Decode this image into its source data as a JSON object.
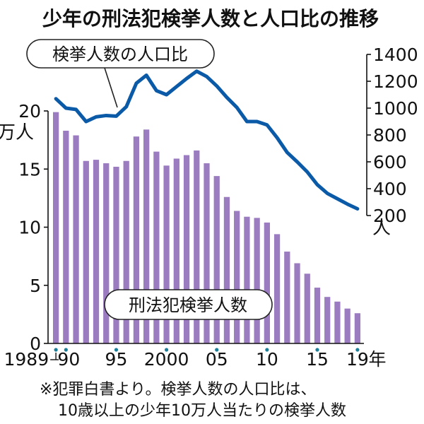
{
  "chart_data": {
    "type": "bar+line",
    "title": "少年の刑法犯検挙人数と人口比の推移",
    "x": [
      1989,
      1990,
      1991,
      1992,
      1993,
      1994,
      1995,
      1996,
      1997,
      1998,
      1999,
      2000,
      2001,
      2002,
      2003,
      2004,
      2005,
      2006,
      2007,
      2008,
      2009,
      2010,
      2011,
      2012,
      2013,
      2014,
      2015,
      2016,
      2017,
      2018,
      2019
    ],
    "x_ticks": [
      {
        "value": 1989,
        "label": "1989"
      },
      {
        "value": 1990,
        "label": "90"
      },
      {
        "value": 1995,
        "label": "95"
      },
      {
        "value": 2000,
        "label": "2000"
      },
      {
        "value": 2005,
        "label": "05"
      },
      {
        "value": 2010,
        "label": "10"
      },
      {
        "value": 2015,
        "label": "15"
      },
      {
        "value": 2019,
        "label": "19"
      }
    ],
    "x_unit": "年",
    "bars": {
      "name": "刑法犯検挙人数",
      "unit": "万人",
      "ylim": [
        0,
        20
      ],
      "yticks": [
        0,
        5,
        10,
        15,
        20
      ],
      "color": "#9b7cc0",
      "values": [
        19.9,
        18.3,
        17.9,
        15.7,
        15.8,
        15.5,
        15.2,
        15.7,
        17.8,
        18.4,
        16.5,
        15.3,
        15.9,
        16.2,
        16.6,
        15.5,
        14.4,
        12.6,
        11.4,
        10.9,
        10.8,
        10.4,
        9.4,
        7.9,
        6.9,
        6.0,
        4.8,
        4.0,
        3.6,
        3.0,
        2.6
      ]
    },
    "line": {
      "name": "検挙人数の人口比",
      "unit": "人",
      "ylim": [
        200,
        1400
      ],
      "yticks": [
        200,
        400,
        600,
        800,
        1000,
        1200,
        1400
      ],
      "color": "#0a5aa8",
      "values": [
        1070,
        1000,
        990,
        900,
        935,
        945,
        940,
        1010,
        1185,
        1245,
        1130,
        1100,
        1160,
        1220,
        1275,
        1235,
        1165,
        1080,
        1005,
        900,
        900,
        875,
        780,
        670,
        600,
        525,
        430,
        365,
        325,
        285,
        250
      ]
    },
    "grid": false,
    "legend": "inline labels"
  },
  "footnote": {
    "line1": "※犯罪白書より。検挙人数の人口比は、",
    "line2": "10歳以上の少年10万人当たりの検挙人数"
  }
}
